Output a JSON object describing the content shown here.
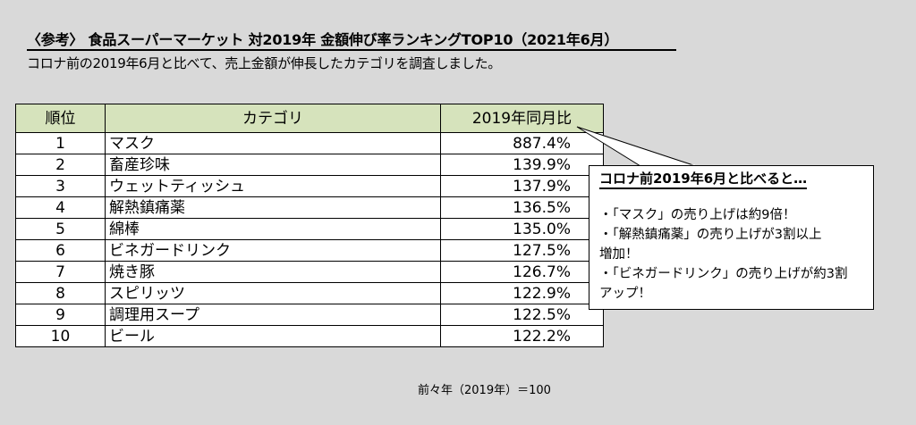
{
  "title": "〈参考〉 食品スーパーマーケット  対2019年 金額伸び率ランキングTOP10（2021年6月）",
  "subtitle": "コロナ前の2019年6月と比べて、売上金額が伸長したカテゴリを調査しました。",
  "table": {
    "headers": {
      "rank": "順位",
      "category": "カテゴリ",
      "value": "2019年同月比"
    },
    "rows": [
      {
        "rank": "1",
        "category": "マスク",
        "value": "887.4%"
      },
      {
        "rank": "2",
        "category": "畜産珍味",
        "value": "139.9%"
      },
      {
        "rank": "3",
        "category": "ウェットティッシュ",
        "value": "137.9%"
      },
      {
        "rank": "4",
        "category": "解熱鎮痛薬",
        "value": "136.5%"
      },
      {
        "rank": "5",
        "category": "綿棒",
        "value": "135.0%"
      },
      {
        "rank": "6",
        "category": "ビネガードリンク",
        "value": "127.5%"
      },
      {
        "rank": "7",
        "category": "焼き豚",
        "value": "126.7%"
      },
      {
        "rank": "8",
        "category": "スピリッツ",
        "value": "122.9%"
      },
      {
        "rank": "9",
        "category": "調理用スープ",
        "value": "122.5%"
      },
      {
        "rank": "10",
        "category": "ビール",
        "value": "122.2%"
      }
    ]
  },
  "callout": {
    "heading": "コロナ前2019年6月と比べると…",
    "items": [
      "・「マスク」の売り上げは約9倍！",
      "・「解熱鎮痛薬」の売り上げが3割以上　増加！",
      "・「ビネガードリンク」の売り上げが約3割　アップ！"
    ],
    "item_lines": [
      [
        "・「マスク」の売り上げは約9倍！"
      ],
      [
        "・「解熱鎮痛薬」の売り上げが3割以上",
        "増加！"
      ],
      [
        "・「ビネガードリンク」の売り上げが約3割",
        "アップ！"
      ]
    ]
  },
  "note": "前々年（2019年）＝100",
  "colors": {
    "background": "#d9d9d9",
    "header_fill": "#d6e3bc"
  }
}
